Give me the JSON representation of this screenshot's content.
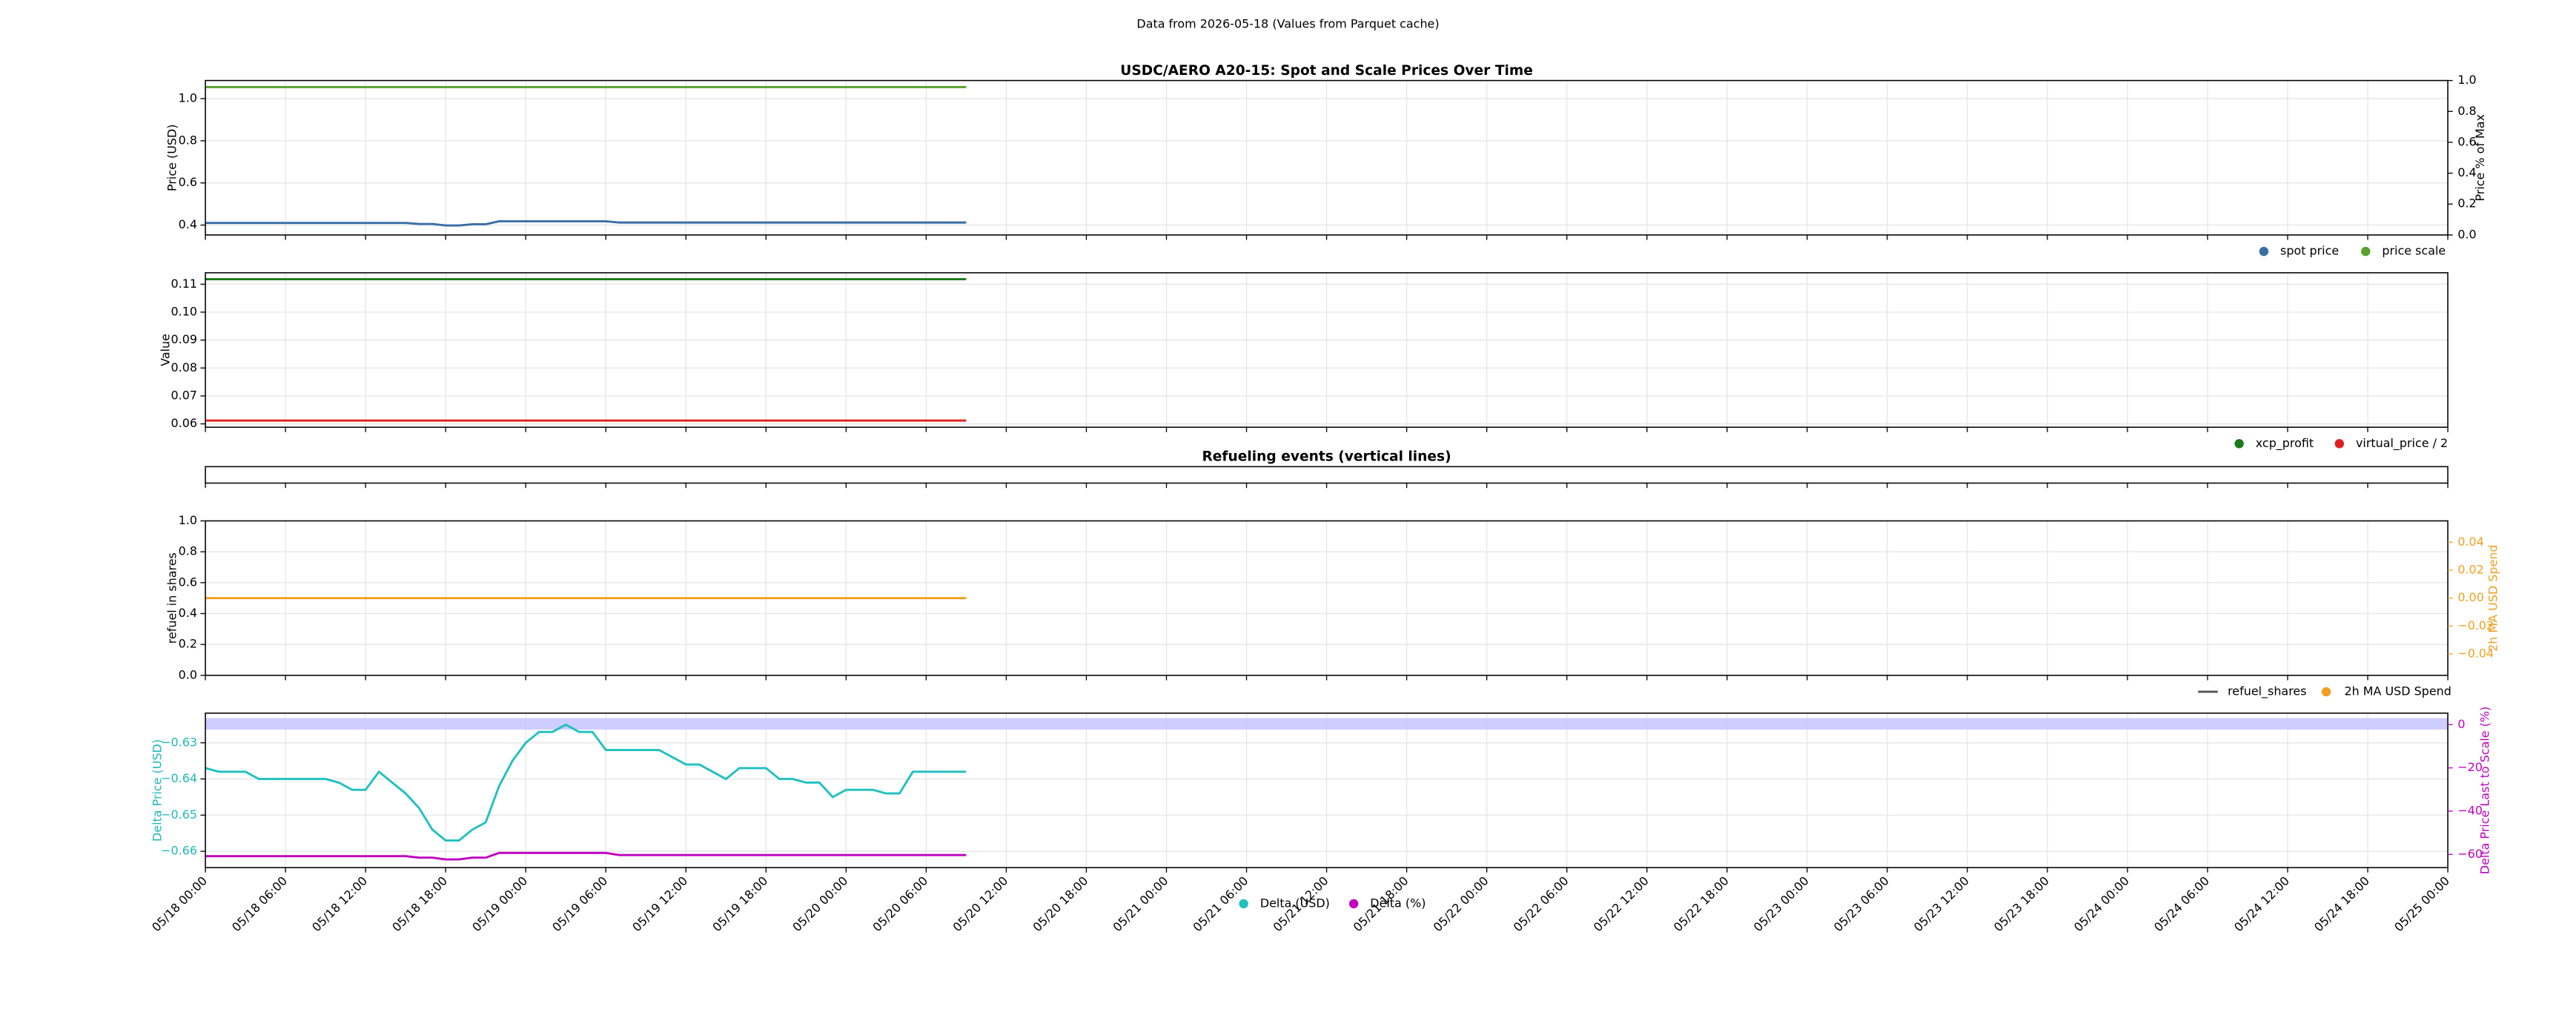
{
  "title": "Data from 2026-05-18 (Values from Parquet cache)",
  "chart_data": [
    {
      "type": "line",
      "title": "USDC/AERO A20-15: Spot and Scale Prices Over Time",
      "ylabel": "Price (USD)",
      "y2label": "Price % of Max",
      "grid": true,
      "ylim": [
        0.353,
        1.086
      ],
      "yticks": [
        0.4,
        0.6,
        0.8,
        {
          "value": 1,
          "label": "1.0"
        }
      ],
      "y2lim": [
        0,
        1
      ],
      "y2ticks": [
        {
          "value": 0,
          "label": "0.0"
        },
        0.2,
        0.4,
        0.6,
        0.8,
        {
          "value": 1,
          "label": "1.0"
        }
      ],
      "series": [
        {
          "name": "spot price",
          "color": "#3a6ea5",
          "x": [
            "05/18 00:00",
            "05/18 01:00",
            "05/18 02:00",
            "05/18 03:00",
            "05/18 04:00",
            "05/18 05:00",
            "05/18 06:00",
            "05/18 07:00",
            "05/18 08:00",
            "05/18 09:00",
            "05/18 10:00",
            "05/18 11:00",
            "05/18 12:00",
            "05/18 13:00",
            "05/18 14:00",
            "05/18 15:00",
            "05/18 16:00",
            "05/18 17:00",
            "05/18 18:00",
            "05/18 19:00",
            "05/18 20:00",
            "05/18 21:00",
            "05/18 22:00",
            "05/18 23:00",
            "05/19 00:00",
            "05/19 01:00",
            "05/19 02:00",
            "05/19 03:00",
            "05/19 04:00",
            "05/19 05:00",
            "05/19 06:00",
            "05/19 07:00",
            "05/19 08:00",
            "05/19 09:00",
            "05/19 10:00",
            "05/19 11:00",
            "05/19 12:00",
            "05/19 13:00",
            "05/19 14:00",
            "05/19 15:00",
            "05/19 16:00",
            "05/19 17:00",
            "05/19 18:00",
            "05/19 19:00",
            "05/19 20:00",
            "05/19 21:00",
            "05/19 22:00",
            "05/19 23:00",
            "05/20 00:00",
            "05/20 01:00",
            "05/20 02:00",
            "05/20 03:00",
            "05/20 04:00",
            "05/20 05:00",
            "05/20 06:00",
            "05/20 07:00",
            "05/20 08:00",
            "05/20 09:00"
          ],
          "values": [
            0.41,
            0.41,
            0.41,
            0.41,
            0.41,
            0.41,
            0.41,
            0.41,
            0.41,
            0.41,
            0.41,
            0.41,
            0.41,
            0.41,
            0.41,
            0.41,
            0.405,
            0.405,
            0.398,
            0.398,
            0.404,
            0.404,
            0.418,
            0.418,
            0.418,
            0.418,
            0.418,
            0.418,
            0.418,
            0.418,
            0.418,
            0.412,
            0.412,
            0.412,
            0.412,
            0.412,
            0.412,
            0.412,
            0.412,
            0.412,
            0.412,
            0.412,
            0.412,
            0.412,
            0.412,
            0.412,
            0.412,
            0.412,
            0.412,
            0.412,
            0.412,
            0.412,
            0.412,
            0.412,
            0.412,
            0.412,
            0.412,
            0.412
          ]
        },
        {
          "name": "price scale",
          "color": "#5aa02c",
          "x": [
            "05/18 00:00",
            "05/20 09:00"
          ],
          "values": [
            1.055,
            1.055
          ]
        }
      ]
    },
    {
      "type": "line",
      "ylabel": "Value",
      "grid": true,
      "ylim": [
        0.0588,
        0.1141
      ],
      "yticks": [
        0.06,
        0.07,
        0.08,
        0.09,
        {
          "value": 0.1,
          "label": "0.10"
        },
        0.11
      ],
      "series": [
        {
          "name": "xcp_profit",
          "color": "#1a7a1a",
          "x": [
            "05/18 00:00",
            "05/20 09:00"
          ],
          "values": [
            0.1118,
            0.1118
          ]
        },
        {
          "name": "virtual_price / 2",
          "color": "#e02020",
          "x": [
            "05/18 00:00",
            "05/20 09:00"
          ],
          "values": [
            0.0612,
            0.0612
          ]
        }
      ]
    },
    {
      "type": "line",
      "title": "Refueling events (vertical lines)"
    },
    {
      "type": "line",
      "ylabel": "refuel in shares",
      "y2label": "2h MA USD Spend",
      "y2color": "#f0a020",
      "grid": true,
      "ylim": [
        0,
        1
      ],
      "yticks": [
        {
          "value": 0,
          "label": "0.0"
        },
        0.2,
        0.4,
        0.6,
        0.8,
        {
          "value": 1,
          "label": "1.0"
        }
      ],
      "y2lim": [
        -0.0553,
        0.0553
      ],
      "y2ticks": [
        {
          "value": -0.04,
          "label": "−0.04"
        },
        {
          "value": -0.02,
          "label": "−0.02"
        },
        {
          "value": 0,
          "label": "0.00"
        },
        0.02,
        0.04
      ],
      "series": [
        {
          "name": "refuel_shares",
          "color": "#555555",
          "legend_marker": "line",
          "x": [
            "05/18 00:00",
            "05/20 09:00"
          ],
          "values": [
            null,
            null
          ]
        },
        {
          "name": "2h MA USD Spend",
          "color": "#f0a020",
          "axis": "y2",
          "x": [
            "05/18 00:00",
            "05/20 09:00"
          ],
          "values": [
            0,
            0
          ]
        }
      ]
    },
    {
      "type": "line",
      "ylabel": "Delta Price (USD)",
      "ylabel_color": "#20b8b8",
      "y2label": "Delta Price Last to Scale (%)",
      "y2color": "#c000c0",
      "grid": true,
      "xlim": [
        "05/18 00:00",
        "05/25 00:00"
      ],
      "xticks": [
        "05/18 00:00",
        "05/18 06:00",
        "05/18 12:00",
        "05/18 18:00",
        "05/19 00:00",
        "05/19 06:00",
        "05/19 12:00",
        "05/19 18:00",
        "05/20 00:00",
        "05/20 06:00",
        "05/20 12:00",
        "05/20 18:00",
        "05/21 00:00",
        "05/21 06:00",
        "05/21 12:00",
        "05/21 18:00",
        "05/22 00:00",
        "05/22 06:00",
        "05/22 12:00",
        "05/22 18:00",
        "05/23 00:00",
        "05/23 06:00",
        "05/23 12:00",
        "05/23 18:00",
        "05/24 00:00",
        "05/24 06:00",
        "05/24 12:00",
        "05/24 18:00",
        "05/25 00:00"
      ],
      "ylim": [
        -0.6645,
        -0.6218
      ],
      "yticks": [
        {
          "value": -0.66,
          "label": "−0.66"
        },
        {
          "value": -0.65,
          "label": "−0.65"
        },
        {
          "value": -0.64,
          "label": "−0.64"
        },
        {
          "value": -0.63,
          "label": "−0.63"
        }
      ],
      "y2lim": [
        -66.1,
        5.3
      ],
      "y2ticks": [
        {
          "value": -60,
          "label": "−60"
        },
        {
          "value": -40,
          "label": "−40"
        },
        {
          "value": -20,
          "label": "−20"
        },
        0
      ],
      "band": [
        -2.3,
        3.0
      ],
      "band_color": "#c8c8ff",
      "series": [
        {
          "name": "Delta (USD)",
          "color": "#20c0c0",
          "x": [
            "05/18 00:00",
            "05/18 01:00",
            "05/18 02:00",
            "05/18 03:00",
            "05/18 04:00",
            "05/18 05:00",
            "05/18 06:00",
            "05/18 07:00",
            "05/18 08:00",
            "05/18 09:00",
            "05/18 10:00",
            "05/18 11:00",
            "05/18 12:00",
            "05/18 13:00",
            "05/18 14:00",
            "05/18 15:00",
            "05/18 16:00",
            "05/18 17:00",
            "05/18 18:00",
            "05/18 19:00",
            "05/18 20:00",
            "05/18 21:00",
            "05/18 22:00",
            "05/18 23:00",
            "05/19 00:00",
            "05/19 01:00",
            "05/19 02:00",
            "05/19 03:00",
            "05/19 04:00",
            "05/19 05:00",
            "05/19 06:00",
            "05/19 07:00",
            "05/19 08:00",
            "05/19 09:00",
            "05/19 10:00",
            "05/19 11:00",
            "05/19 12:00",
            "05/19 13:00",
            "05/19 14:00",
            "05/19 15:00",
            "05/19 16:00",
            "05/19 17:00",
            "05/19 18:00",
            "05/19 19:00",
            "05/19 20:00",
            "05/19 21:00",
            "05/19 22:00",
            "05/19 23:00",
            "05/20 00:00",
            "05/20 01:00",
            "05/20 02:00",
            "05/20 03:00",
            "05/20 04:00",
            "05/20 05:00",
            "05/20 06:00",
            "05/20 07:00",
            "05/20 08:00",
            "05/20 09:00"
          ],
          "values": [
            -0.637,
            -0.638,
            -0.638,
            -0.638,
            -0.64,
            -0.64,
            -0.64,
            -0.64,
            -0.64,
            -0.64,
            -0.641,
            -0.643,
            -0.643,
            -0.638,
            -0.641,
            -0.644,
            -0.648,
            -0.654,
            -0.657,
            -0.657,
            -0.654,
            -0.652,
            -0.642,
            -0.635,
            -0.63,
            -0.627,
            -0.627,
            -0.625,
            -0.627,
            -0.627,
            -0.632,
            -0.632,
            -0.632,
            -0.632,
            -0.632,
            -0.634,
            -0.636,
            -0.636,
            -0.638,
            -0.64,
            -0.637,
            -0.637,
            -0.637,
            -0.64,
            -0.64,
            -0.641,
            -0.641,
            -0.645,
            -0.643,
            -0.643,
            -0.643,
            -0.644,
            -0.644,
            -0.638,
            -0.638,
            -0.638,
            -0.638,
            -0.638
          ]
        },
        {
          "name": "Delta (%)",
          "color": "#c000c0",
          "axis": "y2",
          "x": [
            "05/18 00:00",
            "05/18 01:00",
            "05/18 02:00",
            "05/18 03:00",
            "05/18 04:00",
            "05/18 05:00",
            "05/18 06:00",
            "05/18 07:00",
            "05/18 08:00",
            "05/18 09:00",
            "05/18 10:00",
            "05/18 11:00",
            "05/18 12:00",
            "05/18 13:00",
            "05/18 14:00",
            "05/18 15:00",
            "05/18 16:00",
            "05/18 17:00",
            "05/18 18:00",
            "05/18 19:00",
            "05/18 20:00",
            "05/18 21:00",
            "05/18 22:00",
            "05/18 23:00",
            "05/19 00:00",
            "05/19 01:00",
            "05/19 02:00",
            "05/19 03:00",
            "05/19 04:00",
            "05/19 05:00",
            "05/19 06:00",
            "05/19 07:00",
            "05/19 08:00",
            "05/19 09:00",
            "05/19 10:00",
            "05/19 11:00",
            "05/19 12:00",
            "05/19 13:00",
            "05/19 14:00",
            "05/19 15:00",
            "05/19 16:00",
            "05/19 17:00",
            "05/19 18:00",
            "05/19 19:00",
            "05/19 20:00",
            "05/19 21:00",
            "05/19 22:00",
            "05/19 23:00",
            "05/20 00:00",
            "05/20 01:00",
            "05/20 02:00",
            "05/20 03:00",
            "05/20 04:00",
            "05/20 05:00",
            "05/20 06:00",
            "05/20 07:00",
            "05/20 08:00",
            "05/20 09:00"
          ],
          "values": [
            -60.8,
            -60.8,
            -60.8,
            -60.8,
            -60.8,
            -60.8,
            -60.8,
            -60.8,
            -60.8,
            -60.8,
            -60.8,
            -60.8,
            -60.8,
            -60.8,
            -60.8,
            -60.8,
            -61.5,
            -61.5,
            -62.3,
            -62.3,
            -61.5,
            -61.5,
            -59.3,
            -59.3,
            -59.3,
            -59.3,
            -59.3,
            -59.3,
            -59.3,
            -59.3,
            -59.3,
            -60.3,
            -60.3,
            -60.3,
            -60.3,
            -60.3,
            -60.3,
            -60.3,
            -60.3,
            -60.3,
            -60.3,
            -60.3,
            -60.3,
            -60.3,
            -60.3,
            -60.3,
            -60.3,
            -60.3,
            -60.3,
            -60.3,
            -60.3,
            -60.3,
            -60.3,
            -60.3,
            -60.3,
            -60.3,
            -60.3,
            -60.3
          ]
        }
      ]
    }
  ]
}
